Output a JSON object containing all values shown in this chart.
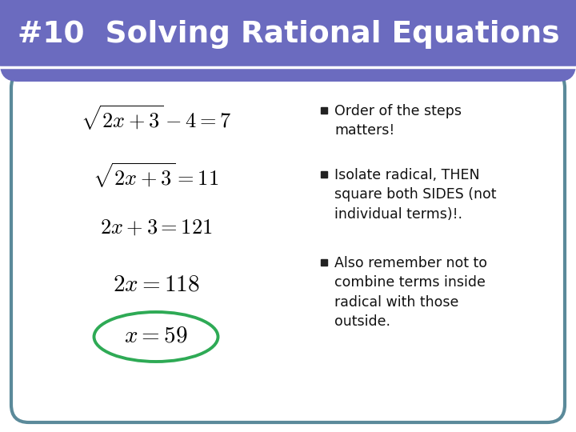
{
  "title": "#10  Solving Rational Equations",
  "title_bg_color": "#6B6BBF",
  "title_text_color": "#FFFFFF",
  "body_bg_color": "#FFFFFF",
  "border_color": "#5B8A9A",
  "bullet_color": "#222222",
  "bullet_text_color": "#111111",
  "circle_color": "#2EAA55",
  "eq1": "$\\sqrt{2x+3} - 4 = 7$",
  "eq2": "$\\sqrt{2x+3} = 11$",
  "eq3": "$2x + 3 = 121$",
  "eq4": "$2x = 118$",
  "eq5": "$x = 59$",
  "bullet1_line1": "Order of the steps",
  "bullet1_line2": "matters!",
  "bullet2_line1": "Isolate radical, THEN",
  "bullet2_line2": "square both SIDES (not",
  "bullet2_line3": "individual terms)!.",
  "bullet3_line1": "Also remember not to",
  "bullet3_line2": "combine terms inside",
  "bullet3_line3": "radical with those",
  "bullet3_line4": "outside.",
  "figw": 7.2,
  "figh": 5.4,
  "dpi": 100
}
